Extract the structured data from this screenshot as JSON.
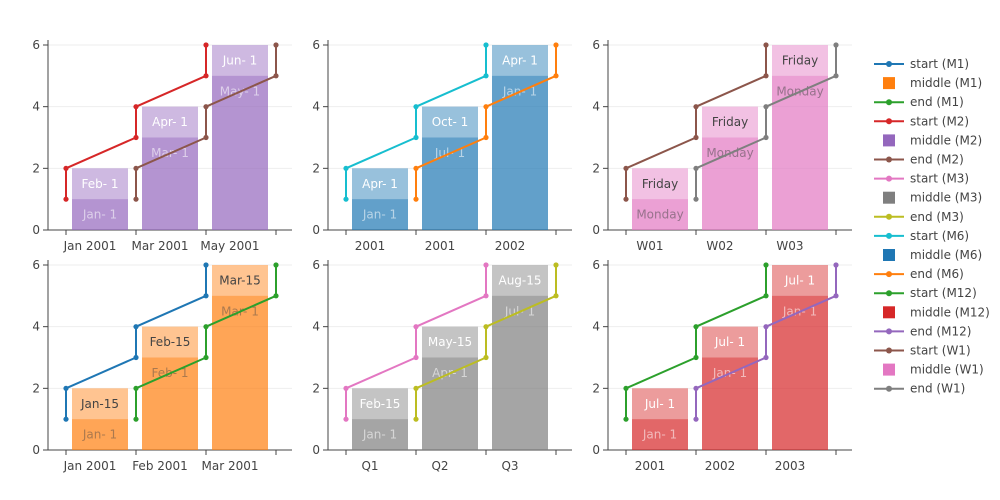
{
  "chart_data": {
    "type": "bar",
    "grid": true,
    "legend_position": "right",
    "colors": {
      "M1": "#ff7f0e",
      "M2": "#9467bd",
      "M3": "#7f7f7f",
      "M6": "#1f77b4",
      "M12": "#d62728",
      "W1": "#e377c2",
      "start_M1": "#1f77b4",
      "end_M1": "#2ca02c",
      "start_M2": "#d62728",
      "end_M2": "#8c564b",
      "start_M3": "#e377c2",
      "end_M3": "#bcbd22",
      "start_M6": "#17becf",
      "end_M6": "#ff7f0e",
      "start_M12": "#2ca02c",
      "end_M12": "#9467bd",
      "start_W1": "#8c564b",
      "end_W1": "#7f7f7f"
    },
    "legend": [
      {
        "name": "start (M1)",
        "kind": "line",
        "color": "#1f77b4"
      },
      {
        "name": "middle (M1)",
        "kind": "bar",
        "color": "#ff7f0e"
      },
      {
        "name": "end (M1)",
        "kind": "line",
        "color": "#2ca02c"
      },
      {
        "name": "start (M2)",
        "kind": "line",
        "color": "#d62728"
      },
      {
        "name": "middle (M2)",
        "kind": "bar",
        "color": "#9467bd"
      },
      {
        "name": "end (M2)",
        "kind": "line",
        "color": "#8c564b"
      },
      {
        "name": "start (M3)",
        "kind": "line",
        "color": "#e377c2"
      },
      {
        "name": "middle (M3)",
        "kind": "bar",
        "color": "#7f7f7f"
      },
      {
        "name": "end (M3)",
        "kind": "line",
        "color": "#bcbd22"
      },
      {
        "name": "start (M6)",
        "kind": "line",
        "color": "#17becf"
      },
      {
        "name": "middle (M6)",
        "kind": "bar",
        "color": "#1f77b4"
      },
      {
        "name": "end (M6)",
        "kind": "line",
        "color": "#ff7f0e"
      },
      {
        "name": "start (M12)",
        "kind": "line",
        "color": "#2ca02c"
      },
      {
        "name": "middle (M12)",
        "kind": "bar",
        "color": "#d62728"
      },
      {
        "name": "end (M12)",
        "kind": "line",
        "color": "#9467bd"
      },
      {
        "name": "start (W1)",
        "kind": "line",
        "color": "#8c564b"
      },
      {
        "name": "middle (W1)",
        "kind": "bar",
        "color": "#e377c2"
      },
      {
        "name": "end (W1)",
        "kind": "line",
        "color": "#7f7f7f"
      }
    ],
    "panels": [
      {
        "id": "M2",
        "ylim": [
          0,
          6
        ],
        "yticks": [
          0,
          2,
          4,
          6
        ],
        "xticks": [
          "Jan 2001",
          "Mar 2001",
          "May 2001"
        ],
        "values": [
          2,
          4,
          6
        ],
        "bar_labels": [
          "Feb- 1",
          "Apr- 1",
          "Jun- 1"
        ],
        "inner_labels": [
          "Jan- 1",
          "Mar- 1",
          "May- 1"
        ],
        "start_series": [
          1,
          2,
          3,
          4,
          5,
          6
        ],
        "end_series": [
          1,
          2,
          3,
          4,
          5,
          6
        ]
      },
      {
        "id": "M6",
        "ylim": [
          0,
          6
        ],
        "yticks": [
          0,
          2,
          4,
          6
        ],
        "xticks": [
          "2001",
          "2001",
          "2002"
        ],
        "values": [
          2,
          4,
          6
        ],
        "bar_labels": [
          "Apr- 1",
          "Oct- 1",
          "Apr- 1"
        ],
        "inner_labels": [
          "Jan- 1",
          "Jul- 1",
          "Jan- 1"
        ],
        "start_series": [
          1,
          2,
          3,
          4,
          5,
          6
        ],
        "end_series": [
          1,
          2,
          3,
          4,
          5,
          6
        ]
      },
      {
        "id": "W1",
        "ylim": [
          0,
          6
        ],
        "yticks": [
          0,
          2,
          4,
          6
        ],
        "xticks": [
          "W01",
          "W02",
          "W03"
        ],
        "values": [
          2,
          4,
          6
        ],
        "bar_labels": [
          "Friday",
          "Friday",
          "Friday"
        ],
        "inner_labels": [
          "Monday",
          "Monday",
          "Monday"
        ],
        "start_series": [
          1,
          2,
          3,
          4,
          5,
          6
        ],
        "end_series": [
          1,
          2,
          3,
          4,
          5,
          6
        ]
      },
      {
        "id": "M1",
        "ylim": [
          0,
          6
        ],
        "yticks": [
          0,
          2,
          4,
          6
        ],
        "xticks": [
          "Jan 2001",
          "Feb 2001",
          "Mar 2001"
        ],
        "values": [
          2,
          4,
          6
        ],
        "bar_labels": [
          "Jan-15",
          "Feb-15",
          "Mar-15"
        ],
        "inner_labels": [
          "Jan- 1",
          "Feb- 1",
          "Mar- 1"
        ],
        "start_series": [
          1,
          2,
          3,
          4,
          5,
          6
        ],
        "end_series": [
          1,
          2,
          3,
          4,
          5,
          6
        ]
      },
      {
        "id": "M3",
        "ylim": [
          0,
          6
        ],
        "yticks": [
          0,
          2,
          4,
          6
        ],
        "xticks": [
          "Q1",
          "Q2",
          "Q3"
        ],
        "values": [
          2,
          4,
          6
        ],
        "bar_labels": [
          "Feb-15",
          "May-15",
          "Aug-15"
        ],
        "inner_labels": [
          "Jan- 1",
          "Apr- 1",
          "Jul- 1"
        ],
        "start_series": [
          1,
          2,
          3,
          4,
          5,
          6
        ],
        "end_series": [
          1,
          2,
          3,
          4,
          5,
          6
        ]
      },
      {
        "id": "M12",
        "ylim": [
          0,
          6
        ],
        "yticks": [
          0,
          2,
          4,
          6
        ],
        "xticks": [
          "2001",
          "2002",
          "2003"
        ],
        "values": [
          2,
          4,
          6
        ],
        "bar_labels": [
          "Jul- 1",
          "Jul- 1",
          "Jul- 1"
        ],
        "inner_labels": [
          "Jan- 1",
          "Jan- 1",
          "Jan- 1"
        ],
        "start_series": [
          1,
          2,
          3,
          4,
          5,
          6
        ],
        "end_series": [
          1,
          2,
          3,
          4,
          5,
          6
        ]
      }
    ]
  }
}
